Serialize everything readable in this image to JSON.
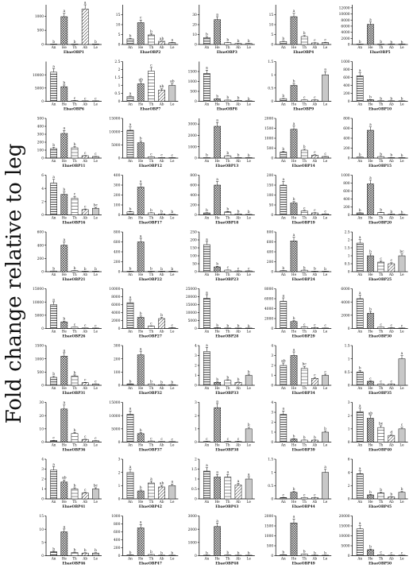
{
  "ylabel": "Fold change relative to leg",
  "tissues": [
    "An",
    "He",
    "Th",
    "Ab",
    "Le"
  ],
  "chart_data": [
    {
      "type": "bar",
      "title": "EbaeOBP1",
      "ymax": 1400,
      "ticks": [
        0,
        500,
        1000
      ],
      "values": [
        5,
        980,
        5,
        1250,
        5
      ],
      "letters": [
        "b",
        "a",
        "b",
        "a",
        "b"
      ]
    },
    {
      "type": "bar",
      "title": "EbaeOBP2",
      "ymax": 20,
      "ticks": [
        0,
        5,
        10,
        15
      ],
      "values": [
        2.8,
        11,
        4.8,
        1.6,
        1
      ],
      "letters": [
        "b",
        "c",
        "b",
        "ab",
        "a"
      ]
    },
    {
      "type": "bar",
      "title": "EbaeOBP3",
      "ymax": 40,
      "ticks": [
        0,
        10,
        20,
        30
      ],
      "values": [
        7,
        25,
        2,
        1,
        1
      ],
      "letters": [
        "b",
        "a",
        "b",
        "b",
        "b"
      ]
    },
    {
      "type": "bar",
      "title": "EbaeOBP4",
      "ymax": 20,
      "ticks": [
        0,
        5,
        10,
        15
      ],
      "values": [
        1.5,
        14,
        4,
        0.8,
        1
      ],
      "letters": [
        "b",
        "a",
        "b",
        "c",
        "c"
      ]
    },
    {
      "type": "bar",
      "title": "EbaeOBP5",
      "ymax": 13000,
      "ticks": [
        0,
        2000,
        4000,
        6000,
        8000,
        10000,
        12000
      ],
      "values": [
        50,
        6600,
        100,
        30,
        10
      ],
      "letters": [
        "b",
        "a",
        "b",
        "b",
        "b"
      ]
    },
    {
      "type": "bar",
      "title": "EbaeOBP6",
      "ymax": 15000,
      "ticks": [
        0,
        5000,
        10000
      ],
      "values": [
        11000,
        5500,
        300,
        100,
        100
      ],
      "letters": [
        "a",
        "b",
        "c",
        "c",
        "c"
      ]
    },
    {
      "type": "bar",
      "title": "EbaeOBP7",
      "ymax": 2.5,
      "ticks": [
        0,
        0.5,
        1,
        1.5,
        2,
        2.5
      ],
      "values": [
        0.3,
        1.1,
        1.9,
        0.7,
        1
      ],
      "letters": [
        "a",
        "ab",
        "c",
        "ab",
        "ab"
      ]
    },
    {
      "type": "bar",
      "title": "EbaeOBP8",
      "ymax": 2000,
      "ticks": [
        0,
        500,
        1000,
        1500
      ],
      "values": [
        1400,
        120,
        60,
        50,
        5
      ],
      "letters": [
        "a",
        "b",
        "b",
        "b",
        "b"
      ]
    },
    {
      "type": "bar",
      "title": "EbaeOBP9",
      "ymax": 1.5,
      "ticks": [
        0,
        0.5,
        1,
        1.5
      ],
      "values": [
        0.1,
        0.6,
        0.05,
        0.05,
        1
      ],
      "letters": [
        "b",
        "b",
        "c",
        "c",
        "a"
      ]
    },
    {
      "type": "bar",
      "title": "EbaeOBP10",
      "ymax": 1000,
      "ticks": [
        0,
        200,
        400,
        600,
        800,
        1000
      ],
      "values": [
        640,
        40,
        10,
        10,
        5
      ],
      "letters": [
        "a",
        "b",
        "b",
        "b",
        "b"
      ]
    },
    {
      "type": "bar",
      "title": "EbaeOBP11",
      "ymax": 500,
      "ticks": [
        0,
        100,
        200,
        300,
        400,
        500
      ],
      "values": [
        120,
        310,
        130,
        30,
        20
      ],
      "letters": [
        "b",
        "a",
        "b",
        "c",
        "c"
      ]
    },
    {
      "type": "bar",
      "title": "EbaeOBP12",
      "ymax": 15000,
      "ticks": [
        0,
        5000,
        10000,
        15000
      ],
      "values": [
        10500,
        5800,
        500,
        200,
        100
      ],
      "letters": [
        "a",
        "b",
        "c",
        "c",
        "c"
      ]
    },
    {
      "type": "bar",
      "title": "EbaeOBP13",
      "ymax": 3500,
      "ticks": [
        0,
        1000,
        2000,
        3000
      ],
      "values": [
        50,
        2800,
        200,
        50,
        20
      ],
      "letters": [
        "b",
        "a",
        "b",
        "b",
        "b"
      ]
    },
    {
      "type": "bar",
      "title": "EbaeOBP14",
      "ymax": 2000,
      "ticks": [
        0,
        500,
        1000,
        1500,
        2000
      ],
      "values": [
        300,
        1450,
        400,
        150,
        80
      ],
      "letters": [
        "b",
        "a",
        "b",
        "c",
        "c"
      ]
    },
    {
      "type": "bar",
      "title": "EbaeOBP15",
      "ymax": 800,
      "ticks": [
        0,
        200,
        400,
        600,
        800
      ],
      "values": [
        20,
        560,
        30,
        10,
        5
      ],
      "letters": [
        "b",
        "a",
        "b",
        "b",
        "b"
      ]
    },
    {
      "type": "bar",
      "title": "EbaeOBP16",
      "ymax": 6,
      "ticks": [
        0,
        2,
        4,
        6
      ],
      "values": [
        4.8,
        3.1,
        2.5,
        0.8,
        1
      ],
      "letters": [
        "a",
        "b",
        "c",
        "c",
        "bc"
      ]
    },
    {
      "type": "bar",
      "title": "EbaeOBP17",
      "ymax": 400,
      "ticks": [
        0,
        100,
        200,
        300,
        400
      ],
      "values": [
        30,
        280,
        20,
        10,
        5
      ],
      "letters": [
        "b",
        "a",
        "b",
        "b",
        "b"
      ]
    },
    {
      "type": "bar",
      "title": "EbaeOBP18",
      "ymax": 800,
      "ticks": [
        0,
        200,
        400,
        600,
        800
      ],
      "values": [
        40,
        600,
        60,
        20,
        10
      ],
      "letters": [
        "b",
        "a",
        "b",
        "b",
        "b"
      ]
    },
    {
      "type": "bar",
      "title": "EbaeOBP19",
      "ymax": 200,
      "ticks": [
        0,
        50,
        100,
        150,
        200
      ],
      "values": [
        150,
        60,
        20,
        10,
        5
      ],
      "letters": [
        "a",
        "b",
        "c",
        "c",
        "c"
      ]
    },
    {
      "type": "bar",
      "title": "EbaeOBP20",
      "ymax": 1000,
      "ticks": [
        0,
        200,
        400,
        600,
        800,
        1000
      ],
      "values": [
        50,
        780,
        60,
        20,
        10
      ],
      "letters": [
        "b",
        "a",
        "b",
        "b",
        "b"
      ]
    },
    {
      "type": "bar",
      "title": "EbaeOBP21",
      "ymax": 600,
      "ticks": [
        0,
        200,
        400,
        600
      ],
      "values": [
        10,
        400,
        15,
        5,
        5
      ],
      "letters": [
        "b",
        "a",
        "b",
        "b",
        "b"
      ]
    },
    {
      "type": "bar",
      "title": "EbaeOBP22",
      "ymax": 800,
      "ticks": [
        0,
        200,
        400,
        600,
        800
      ],
      "values": [
        10,
        600,
        10,
        5,
        5
      ],
      "letters": [
        "b",
        "a",
        "b",
        "b",
        "b"
      ]
    },
    {
      "type": "bar",
      "title": "EbaeOBP23",
      "ymax": 250,
      "ticks": [
        0,
        50,
        100,
        150,
        200,
        250
      ],
      "values": [
        170,
        30,
        10,
        5,
        5
      ],
      "letters": [
        "a",
        "b",
        "c",
        "c",
        "c"
      ]
    },
    {
      "type": "bar",
      "title": "EbaeOBP24",
      "ymax": 800,
      "ticks": [
        0,
        200,
        400,
        600,
        800
      ],
      "values": [
        20,
        620,
        30,
        10,
        5
      ],
      "letters": [
        "b",
        "a",
        "b",
        "b",
        "b"
      ]
    },
    {
      "type": "bar",
      "title": "EbaeOBP25",
      "ymax": 2.5,
      "ticks": [
        0,
        0.5,
        1,
        1.5,
        2,
        2.5
      ],
      "values": [
        1.8,
        1,
        0.6,
        0.5,
        1
      ],
      "letters": [
        "a",
        "b",
        "c",
        "c",
        "bc"
      ]
    },
    {
      "type": "bar",
      "title": "EbaeOBP26",
      "ymax": 15000,
      "ticks": [
        0,
        5000,
        10000,
        15000
      ],
      "values": [
        9000,
        2500,
        500,
        200,
        100
      ],
      "letters": [
        "a",
        "b",
        "c",
        "c",
        "c"
      ]
    },
    {
      "type": "bar",
      "title": "EbaeOBP27",
      "ymax": 10000,
      "ticks": [
        0,
        2000,
        4000,
        6000,
        8000,
        10000
      ],
      "values": [
        6500,
        2800,
        600,
        2500,
        200
      ],
      "letters": [
        "a",
        "b",
        "c",
        "b",
        "c"
      ]
    },
    {
      "type": "bar",
      "title": "EbaeOBP28",
      "ymax": 25000,
      "ticks": [
        0,
        5000,
        10000,
        15000,
        20000,
        25000
      ],
      "values": [
        19000,
        500,
        200,
        100,
        50
      ],
      "letters": [
        "a",
        "b",
        "b",
        "b",
        "b"
      ]
    },
    {
      "type": "bar",
      "title": "EbaeOBP29",
      "ymax": 8000,
      "ticks": [
        0,
        2000,
        4000,
        6000,
        8000
      ],
      "values": [
        5500,
        1400,
        300,
        200,
        100
      ],
      "letters": [
        "a",
        "b",
        "c",
        "c",
        "c"
      ]
    },
    {
      "type": "bar",
      "title": "EbaeOBP30",
      "ymax": 6000,
      "ticks": [
        0,
        2000,
        4000,
        6000
      ],
      "values": [
        4500,
        2300,
        200,
        100,
        50
      ],
      "letters": [
        "a",
        "b",
        "c",
        "c",
        "c"
      ]
    },
    {
      "type": "bar",
      "title": "EbaeOBP31",
      "ymax": 1500,
      "ticks": [
        0,
        500,
        1000,
        1500
      ],
      "values": [
        300,
        1100,
        350,
        100,
        50
      ],
      "letters": [
        "b",
        "a",
        "b",
        "c",
        "c"
      ]
    },
    {
      "type": "bar",
      "title": "EbaeOBP32",
      "ymax": 300,
      "ticks": [
        0,
        100,
        200,
        300
      ],
      "values": [
        10,
        230,
        10,
        5,
        5
      ],
      "letters": [
        "b",
        "a",
        "b",
        "b",
        "b"
      ]
    },
    {
      "type": "bar",
      "title": "EbaeOBP33",
      "ymax": 4,
      "ticks": [
        0,
        1,
        2,
        3,
        4
      ],
      "values": [
        3.4,
        0.3,
        0.5,
        0.3,
        1
      ],
      "letters": [
        "a",
        "b",
        "b",
        "b",
        "b"
      ]
    },
    {
      "type": "bar",
      "title": "EbaeOBP34",
      "ymax": 4,
      "ticks": [
        0,
        1,
        2,
        3,
        4
      ],
      "values": [
        2,
        3,
        1.7,
        0.7,
        1
      ],
      "letters": [
        "ab",
        "a",
        "bc",
        "c",
        "c"
      ]
    },
    {
      "type": "bar",
      "title": "EbaeOBP35",
      "ymax": 1.5,
      "ticks": [
        0,
        0.5,
        1,
        1.5
      ],
      "values": [
        0.5,
        0.15,
        0.05,
        0.05,
        1
      ],
      "letters": [
        "b",
        "c",
        "c",
        "c",
        "a"
      ]
    },
    {
      "type": "bar",
      "title": "EbaeOBP36",
      "ymax": 30,
      "ticks": [
        0,
        10,
        20,
        30
      ],
      "values": [
        1.2,
        25,
        6.5,
        2,
        1
      ],
      "letters": [
        "c",
        "a",
        "b",
        "c",
        "c"
      ]
    },
    {
      "type": "bar",
      "title": "EbaeOBP37",
      "ymax": 15000,
      "ticks": [
        0,
        5000,
        10000,
        15000
      ],
      "values": [
        10500,
        3200,
        400,
        200,
        100
      ],
      "letters": [
        "a",
        "b",
        "c",
        "c",
        "c"
      ]
    },
    {
      "type": "bar",
      "title": "EbaeOBP38",
      "ymax": 3,
      "ticks": [
        0,
        1,
        2,
        3
      ],
      "values": [
        0.05,
        2.6,
        0.05,
        0.05,
        1
      ],
      "letters": [
        "c",
        "a",
        "c",
        "c",
        "b"
      ]
    },
    {
      "type": "bar",
      "title": "EbaeOBP39",
      "ymax": 4,
      "ticks": [
        0,
        1,
        2,
        3,
        4
      ],
      "values": [
        2.8,
        0.3,
        0.2,
        0.2,
        1
      ],
      "letters": [
        "a",
        "b",
        "b",
        "b",
        "b"
      ]
    },
    {
      "type": "bar",
      "title": "EbaeOBP40",
      "ymax": 3,
      "ticks": [
        0,
        1,
        2,
        3
      ],
      "values": [
        2.3,
        1.8,
        1.1,
        0.5,
        1
      ],
      "letters": [
        "a",
        "ab",
        "bc",
        "d",
        "c"
      ]
    },
    {
      "type": "bar",
      "title": "EbaeOBP41",
      "ymax": 4,
      "ticks": [
        0,
        1,
        2,
        3,
        4
      ],
      "values": [
        2.9,
        1.7,
        1,
        0.6,
        1
      ],
      "letters": [
        "a",
        "ab",
        "b",
        "c",
        "bc"
      ]
    },
    {
      "type": "bar",
      "title": "EbaeOBP42",
      "ymax": 3,
      "ticks": [
        0,
        1,
        2,
        3
      ],
      "values": [
        2,
        0.6,
        1.2,
        0.9,
        1
      ],
      "letters": [
        "a",
        "b",
        "a",
        "ab",
        "a"
      ]
    },
    {
      "type": "bar",
      "title": "EbaeOBP43",
      "ymax": 2,
      "ticks": [
        0,
        0.5,
        1,
        1.5,
        2
      ],
      "values": [
        1.4,
        1.1,
        1.1,
        0.7,
        1
      ],
      "letters": [
        "a",
        "a",
        "a",
        "a",
        "a"
      ]
    },
    {
      "type": "bar",
      "title": "EbaeOBP44",
      "ymax": 1.5,
      "ticks": [
        0,
        0.5,
        1,
        1.5
      ],
      "values": [
        0.05,
        0.25,
        0.05,
        0.05,
        1
      ],
      "letters": [
        "c",
        "b",
        "c",
        "c",
        "a"
      ]
    },
    {
      "type": "bar",
      "title": "EbaeOBP45",
      "ymax": 6,
      "ticks": [
        0,
        2,
        4,
        6
      ],
      "values": [
        3.8,
        0.6,
        0.9,
        0.3,
        1
      ],
      "letters": [
        "a",
        "b",
        "b",
        "b",
        "b"
      ]
    },
    {
      "type": "bar",
      "title": "EbaeOBP46",
      "ymax": 15,
      "ticks": [
        0,
        5,
        10,
        15
      ],
      "values": [
        1.5,
        9,
        1.2,
        1,
        1
      ],
      "letters": [
        "b",
        "a",
        "b",
        "b",
        "b"
      ]
    },
    {
      "type": "bar",
      "title": "EbaeOBP47",
      "ymax": 1000,
      "ticks": [
        0,
        200,
        400,
        600,
        800,
        1000
      ],
      "values": [
        20,
        700,
        30,
        10,
        5
      ],
      "letters": [
        "b",
        "a",
        "b",
        "b",
        "b"
      ]
    },
    {
      "type": "bar",
      "title": "EbaeOBP48",
      "ymax": 3000,
      "ticks": [
        0,
        1000,
        2000,
        3000
      ],
      "values": [
        30,
        2200,
        50,
        20,
        10
      ],
      "letters": [
        "b",
        "a",
        "b",
        "b",
        "b"
      ]
    },
    {
      "type": "bar",
      "title": "EbaeOBP49",
      "ymax": 2000,
      "ticks": [
        0,
        500,
        1000,
        1500,
        2000
      ],
      "values": [
        50,
        1650,
        80,
        20,
        10
      ],
      "letters": [
        "b",
        "a",
        "b",
        "b",
        "b"
      ]
    },
    {
      "type": "bar",
      "title": "EbaeOBP50",
      "ymax": 20000,
      "ticks": [
        0,
        5000,
        10000,
        15000,
        20000
      ],
      "values": [
        13500,
        3000,
        500,
        200,
        100
      ],
      "letters": [
        "a",
        "b",
        "c",
        "c",
        "c"
      ]
    }
  ]
}
